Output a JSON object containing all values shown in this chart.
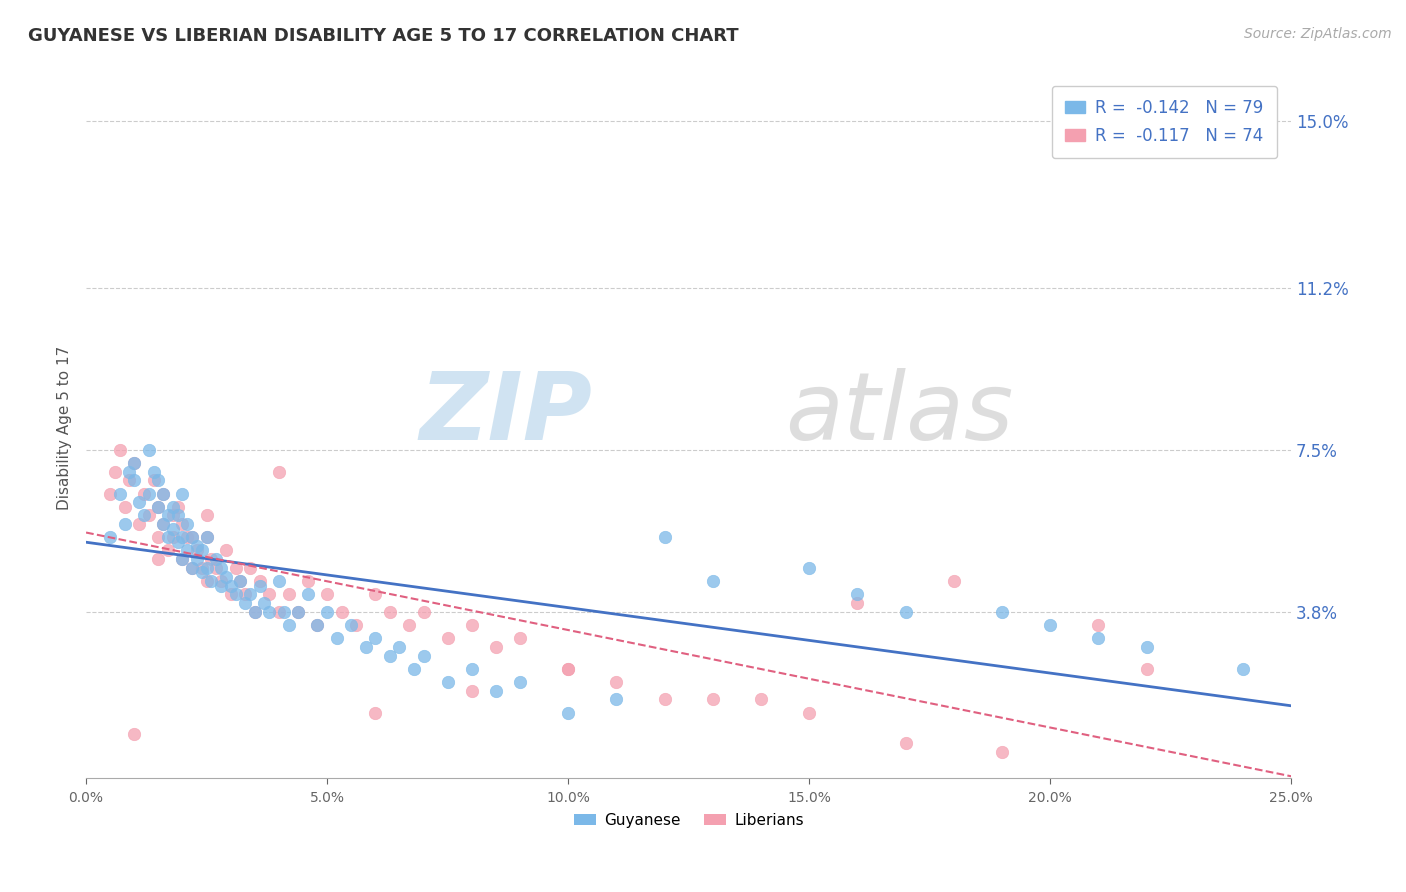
{
  "title": "GUYANESE VS LIBERIAN DISABILITY AGE 5 TO 17 CORRELATION CHART",
  "source_text": "Source: ZipAtlas.com",
  "ylabel": "Disability Age 5 to 17",
  "xmin": 0.0,
  "xmax": 0.25,
  "ymin": 0.0,
  "ymax": 0.16,
  "yticks": [
    0.038,
    0.075,
    0.112,
    0.15
  ],
  "ytick_labels": [
    "3.8%",
    "7.5%",
    "11.2%",
    "15.0%"
  ],
  "guyanese_color": "#7bb8e8",
  "liberian_color": "#f4a0b0",
  "guyanese_R": -0.142,
  "guyanese_N": 79,
  "liberian_R": -0.117,
  "liberian_N": 74,
  "legend_label_1": "Guyanese",
  "legend_label_2": "Liberians",
  "guyanese_scatter_x": [
    0.005,
    0.007,
    0.008,
    0.009,
    0.01,
    0.01,
    0.011,
    0.012,
    0.013,
    0.013,
    0.014,
    0.015,
    0.015,
    0.016,
    0.016,
    0.017,
    0.017,
    0.018,
    0.018,
    0.019,
    0.019,
    0.02,
    0.02,
    0.02,
    0.021,
    0.021,
    0.022,
    0.022,
    0.023,
    0.023,
    0.024,
    0.024,
    0.025,
    0.025,
    0.026,
    0.027,
    0.028,
    0.028,
    0.029,
    0.03,
    0.031,
    0.032,
    0.033,
    0.034,
    0.035,
    0.036,
    0.037,
    0.038,
    0.04,
    0.041,
    0.042,
    0.044,
    0.046,
    0.048,
    0.05,
    0.052,
    0.055,
    0.058,
    0.06,
    0.063,
    0.065,
    0.068,
    0.07,
    0.075,
    0.08,
    0.085,
    0.09,
    0.1,
    0.11,
    0.12,
    0.13,
    0.15,
    0.16,
    0.17,
    0.19,
    0.2,
    0.21,
    0.22,
    0.24
  ],
  "guyanese_scatter_y": [
    0.055,
    0.065,
    0.058,
    0.07,
    0.068,
    0.072,
    0.063,
    0.06,
    0.075,
    0.065,
    0.07,
    0.062,
    0.068,
    0.058,
    0.065,
    0.055,
    0.06,
    0.062,
    0.057,
    0.054,
    0.06,
    0.05,
    0.055,
    0.065,
    0.052,
    0.058,
    0.048,
    0.055,
    0.05,
    0.053,
    0.047,
    0.052,
    0.048,
    0.055,
    0.045,
    0.05,
    0.044,
    0.048,
    0.046,
    0.044,
    0.042,
    0.045,
    0.04,
    0.042,
    0.038,
    0.044,
    0.04,
    0.038,
    0.045,
    0.038,
    0.035,
    0.038,
    0.042,
    0.035,
    0.038,
    0.032,
    0.035,
    0.03,
    0.032,
    0.028,
    0.03,
    0.025,
    0.028,
    0.022,
    0.025,
    0.02,
    0.022,
    0.015,
    0.018,
    0.055,
    0.045,
    0.048,
    0.042,
    0.038,
    0.038,
    0.035,
    0.032,
    0.03,
    0.025
  ],
  "liberian_scatter_x": [
    0.005,
    0.006,
    0.007,
    0.008,
    0.009,
    0.01,
    0.011,
    0.012,
    0.013,
    0.014,
    0.015,
    0.015,
    0.016,
    0.016,
    0.017,
    0.018,
    0.018,
    0.019,
    0.02,
    0.02,
    0.021,
    0.022,
    0.022,
    0.023,
    0.024,
    0.025,
    0.025,
    0.026,
    0.027,
    0.028,
    0.029,
    0.03,
    0.031,
    0.032,
    0.033,
    0.034,
    0.035,
    0.036,
    0.038,
    0.04,
    0.042,
    0.044,
    0.046,
    0.048,
    0.05,
    0.053,
    0.056,
    0.06,
    0.063,
    0.067,
    0.07,
    0.075,
    0.08,
    0.085,
    0.09,
    0.1,
    0.11,
    0.12,
    0.14,
    0.15,
    0.17,
    0.19,
    0.21,
    0.22,
    0.18,
    0.16,
    0.13,
    0.1,
    0.08,
    0.06,
    0.04,
    0.025,
    0.015,
    0.01
  ],
  "liberian_scatter_y": [
    0.065,
    0.07,
    0.075,
    0.062,
    0.068,
    0.072,
    0.058,
    0.065,
    0.06,
    0.068,
    0.055,
    0.062,
    0.058,
    0.065,
    0.052,
    0.06,
    0.055,
    0.062,
    0.05,
    0.058,
    0.055,
    0.048,
    0.055,
    0.052,
    0.048,
    0.055,
    0.045,
    0.05,
    0.048,
    0.045,
    0.052,
    0.042,
    0.048,
    0.045,
    0.042,
    0.048,
    0.038,
    0.045,
    0.042,
    0.038,
    0.042,
    0.038,
    0.045,
    0.035,
    0.042,
    0.038,
    0.035,
    0.042,
    0.038,
    0.035,
    0.038,
    0.032,
    0.035,
    0.03,
    0.032,
    0.025,
    0.022,
    0.018,
    0.018,
    0.015,
    0.008,
    0.006,
    0.035,
    0.025,
    0.045,
    0.04,
    0.018,
    0.025,
    0.02,
    0.015,
    0.07,
    0.06,
    0.05,
    0.01
  ]
}
